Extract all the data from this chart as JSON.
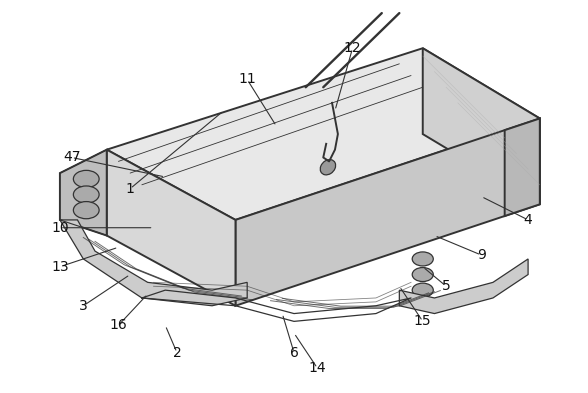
{
  "fig_width": 5.88,
  "fig_height": 3.93,
  "dpi": 100,
  "bg_color": "#ffffff",
  "line_color": "#333333",
  "labels": {
    "1": [
      0.22,
      0.52,
      0.38,
      0.72
    ],
    "2": [
      0.3,
      0.1,
      0.28,
      0.17
    ],
    "3": [
      0.14,
      0.22,
      0.22,
      0.3
    ],
    "4": [
      0.9,
      0.44,
      0.82,
      0.5
    ],
    "5": [
      0.76,
      0.27,
      0.72,
      0.32
    ],
    "6": [
      0.5,
      0.1,
      0.48,
      0.2
    ],
    "9": [
      0.82,
      0.35,
      0.74,
      0.4
    ],
    "10": [
      0.1,
      0.42,
      0.26,
      0.42
    ],
    "11": [
      0.42,
      0.8,
      0.47,
      0.68
    ],
    "12": [
      0.6,
      0.88,
      0.57,
      0.72
    ],
    "13": [
      0.1,
      0.32,
      0.2,
      0.37
    ],
    "14": [
      0.54,
      0.06,
      0.5,
      0.15
    ],
    "15": [
      0.72,
      0.18,
      0.68,
      0.27
    ],
    "16": [
      0.2,
      0.17,
      0.25,
      0.25
    ],
    "47": [
      0.12,
      0.6,
      0.28,
      0.55
    ]
  },
  "label_fontsize": 10,
  "label_color": "#111111"
}
